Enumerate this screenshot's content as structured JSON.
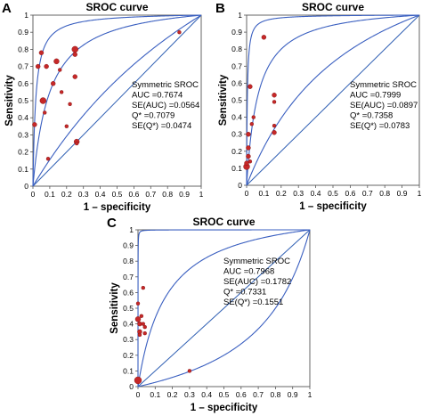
{
  "chart_data": [
    {
      "type": "scatter",
      "panel": "A",
      "title": "SROC curve",
      "xlabel": "1 – specificity",
      "ylabel": "Sensitivity",
      "xlim": [
        0,
        1
      ],
      "ylim": [
        0,
        1
      ],
      "xticks": [
        "0",
        "0.1",
        "0.2",
        "0.3",
        "0.4",
        "0.5",
        "0.6",
        "0.7",
        "0.8",
        "0.9",
        "1"
      ],
      "yticks": [
        "0",
        "0.1",
        "0.2",
        "0.3",
        "0.4",
        "0.5",
        "0.6",
        "0.7",
        "0.8",
        "0.9",
        "1"
      ],
      "stats": [
        "Symmetric SROC",
        "AUC =0.7674",
        "SE(AUC) =0.0564",
        "Q* =0.7079",
        "SE(Q*) =0.0474"
      ],
      "curve_dors": [
        11,
        1.65,
        60
      ],
      "points": [
        {
          "x": 0.01,
          "y": 0.36,
          "s": 2.5
        },
        {
          "x": 0.03,
          "y": 0.7,
          "s": 2.5
        },
        {
          "x": 0.05,
          "y": 0.78,
          "s": 2.5
        },
        {
          "x": 0.06,
          "y": 0.5,
          "s": 3.5
        },
        {
          "x": 0.07,
          "y": 0.43,
          "s": 2
        },
        {
          "x": 0.08,
          "y": 0.7,
          "s": 2.5
        },
        {
          "x": 0.09,
          "y": 0.16,
          "s": 2
        },
        {
          "x": 0.12,
          "y": 0.6,
          "s": 2.5
        },
        {
          "x": 0.14,
          "y": 0.73,
          "s": 3
        },
        {
          "x": 0.16,
          "y": 0.68,
          "s": 2
        },
        {
          "x": 0.17,
          "y": 0.55,
          "s": 2
        },
        {
          "x": 0.2,
          "y": 0.35,
          "s": 2
        },
        {
          "x": 0.22,
          "y": 0.48,
          "s": 2
        },
        {
          "x": 0.25,
          "y": 0.8,
          "s": 3.5
        },
        {
          "x": 0.25,
          "y": 0.77,
          "s": 2.5
        },
        {
          "x": 0.25,
          "y": 0.64,
          "s": 2.5
        },
        {
          "x": 0.26,
          "y": 0.26,
          "s": 3
        },
        {
          "x": 0.26,
          "y": 0.25,
          "s": 2
        },
        {
          "x": 0.87,
          "y": 0.9,
          "s": 2
        }
      ]
    },
    {
      "type": "scatter",
      "panel": "B",
      "title": "SROC curve",
      "xlabel": "1 – specificity",
      "ylabel": "Sensitivity",
      "xlim": [
        0,
        1
      ],
      "ylim": [
        0,
        1
      ],
      "xticks": [
        "0",
        "0.1",
        "0.2",
        "0.3",
        "0.4",
        "0.5",
        "0.6",
        "0.7",
        "0.8",
        "0.9",
        "1"
      ],
      "yticks": [
        "0",
        "0.1",
        "0.2",
        "0.3",
        "0.4",
        "0.5",
        "0.6",
        "0.7",
        "0.8",
        "0.9",
        "1"
      ],
      "stats": [
        "Symmetric SROC",
        "AUC =0.7999",
        "SE(AUC) =0.0897",
        "Q* =0.7358",
        "SE(Q*) =0.0783"
      ],
      "curve_dors": [
        16,
        2.6,
        250
      ],
      "points": [
        {
          "x": 0.0,
          "y": 0.11,
          "s": 3.5
        },
        {
          "x": 0.0,
          "y": 0.13,
          "s": 2.5
        },
        {
          "x": 0.01,
          "y": 0.3,
          "s": 2.5
        },
        {
          "x": 0.01,
          "y": 0.22,
          "s": 2.5
        },
        {
          "x": 0.01,
          "y": 0.17,
          "s": 2.5
        },
        {
          "x": 0.02,
          "y": 0.58,
          "s": 2.5
        },
        {
          "x": 0.02,
          "y": 0.14,
          "s": 2
        },
        {
          "x": 0.03,
          "y": 0.36,
          "s": 2
        },
        {
          "x": 0.04,
          "y": 0.4,
          "s": 2
        },
        {
          "x": 0.1,
          "y": 0.87,
          "s": 2.5
        },
        {
          "x": 0.16,
          "y": 0.53,
          "s": 2.5
        },
        {
          "x": 0.16,
          "y": 0.49,
          "s": 2
        },
        {
          "x": 0.16,
          "y": 0.35,
          "s": 2
        },
        {
          "x": 0.16,
          "y": 0.31,
          "s": 2.5
        }
      ]
    },
    {
      "type": "scatter",
      "panel": "C",
      "title": "SROC curve",
      "xlabel": "1 – specificity",
      "ylabel": "Sensitivity",
      "xlim": [
        0,
        1
      ],
      "ylim": [
        0,
        1
      ],
      "xticks": [
        "0",
        "0.1",
        "0.2",
        "0.3",
        "0.4",
        "0.5",
        "0.6",
        "0.7",
        "0.8",
        "0.9",
        "1"
      ],
      "yticks": [
        "0",
        "0.1",
        "0.2",
        "0.3",
        "0.4",
        "0.5",
        "0.6",
        "0.7",
        "0.8",
        "0.9",
        "1"
      ],
      "stats": [
        "Symmetric SROC",
        "AUC =0.7968",
        "SE(AUC) =0.1782",
        "Q* =0.7331",
        "SE(Q*) =0.1551"
      ],
      "curve_dors": [
        7,
        0.25,
        6000
      ],
      "points": [
        {
          "x": 0.0,
          "y": 0.04,
          "s": 4
        },
        {
          "x": 0.0,
          "y": 0.53,
          "s": 2
        },
        {
          "x": 0.0,
          "y": 0.43,
          "s": 3
        },
        {
          "x": 0.01,
          "y": 0.4,
          "s": 2.5
        },
        {
          "x": 0.01,
          "y": 0.35,
          "s": 2.5
        },
        {
          "x": 0.01,
          "y": 0.33,
          "s": 2
        },
        {
          "x": 0.02,
          "y": 0.45,
          "s": 2
        },
        {
          "x": 0.03,
          "y": 0.63,
          "s": 2
        },
        {
          "x": 0.03,
          "y": 0.4,
          "s": 2
        },
        {
          "x": 0.04,
          "y": 0.38,
          "s": 2
        },
        {
          "x": 0.04,
          "y": 0.34,
          "s": 2
        },
        {
          "x": 0.3,
          "y": 0.1,
          "s": 2
        }
      ]
    }
  ]
}
